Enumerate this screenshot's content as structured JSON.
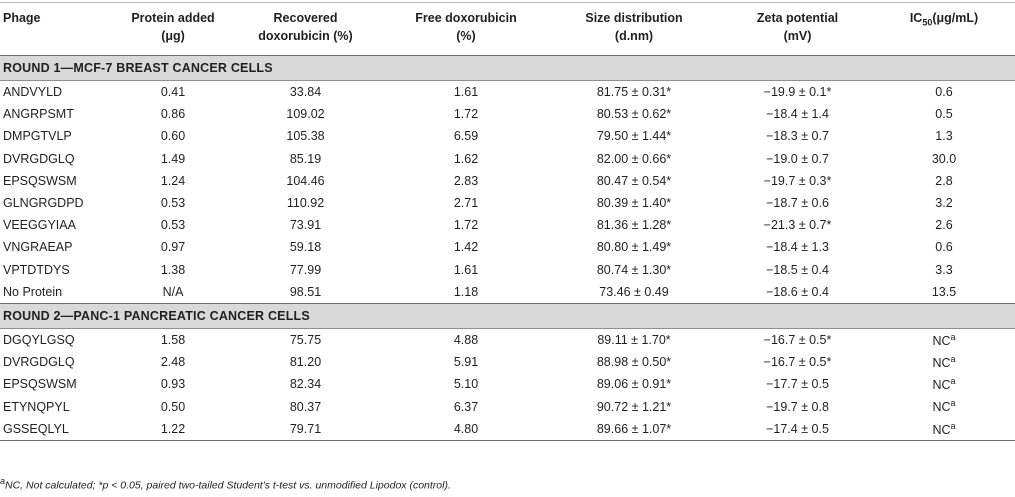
{
  "headers": [
    [
      "Phage"
    ],
    [
      "Protein added",
      "(μg)"
    ],
    [
      "Recovered",
      "doxorubicin (%)"
    ],
    [
      "Free doxorubicin",
      "(%)"
    ],
    [
      "Size distribution",
      "(d.nm)"
    ],
    [
      "Zeta potential",
      "(mV)"
    ],
    [
      "IC",
      "50",
      "(μg/mL)"
    ]
  ],
  "sections": [
    {
      "title": "ROUND 1—MCF-7 BREAST CANCER CELLS",
      "rows": [
        [
          "ANDVYLD",
          "0.41",
          "33.84",
          "1.61",
          "81.75 ± 0.31*",
          "−19.9 ± 0.1*",
          "0.6"
        ],
        [
          "ANGRPSMT",
          "0.86",
          "109.02",
          "1.72",
          "80.53 ± 0.62*",
          "−18.4 ± 1.4",
          "0.5"
        ],
        [
          "DMPGTVLP",
          "0.60",
          "105.38",
          "6.59",
          "79.50 ± 1.44*",
          "−18.3 ± 0.7",
          "1.3"
        ],
        [
          "DVRGDGLQ",
          "1.49",
          "85.19",
          "1.62",
          "82.00 ± 0.66*",
          "−19.0 ± 0.7",
          "30.0"
        ],
        [
          "EPSQSWSM",
          "1.24",
          "104.46",
          "2.83",
          "80.47 ± 0.54*",
          "−19.7 ± 0.3*",
          "2.8"
        ],
        [
          "GLNGRGDPD",
          "0.53",
          "110.92",
          "2.71",
          "80.39 ± 1.40*",
          "−18.7 ± 0.6",
          "3.2"
        ],
        [
          "VEEGGYIAA",
          "0.53",
          "73.91",
          "1.72",
          "81.36 ± 1.28*",
          "−21.3 ± 0.7*",
          "2.6"
        ],
        [
          "VNGRAEAP",
          "0.97",
          "59.18",
          "1.42",
          "80.80 ± 1.49*",
          "−18.4 ± 1.3",
          "0.6"
        ],
        [
          "VPTDTDYS",
          "1.38",
          "77.99",
          "1.61",
          "80.74 ± 1.30*",
          "−18.5 ± 0.4",
          "3.3"
        ],
        [
          "No Protein",
          "N/A",
          "98.51",
          "1.18",
          "73.46 ± 0.49",
          "−18.6 ± 0.4",
          "13.5"
        ]
      ]
    },
    {
      "title": "ROUND 2—PANC-1 PANCREATIC CANCER CELLS",
      "rows": [
        [
          "DGQYLGSQ",
          "1.58",
          "75.75",
          "4.88",
          "89.11 ± 1.70*",
          "−16.7 ± 0.5*",
          "NC",
          "a"
        ],
        [
          "DVRGDGLQ",
          "2.48",
          "81.20",
          "5.91",
          "88.98 ± 0.50*",
          "−16.7 ± 0.5*",
          "NC",
          "a"
        ],
        [
          "EPSQSWSM",
          "0.93",
          "82.34",
          "5.10",
          "89.06 ± 0.91*",
          "−17.7 ± 0.5",
          "NC",
          "a"
        ],
        [
          "ETYNQPYL",
          "0.50",
          "80.37",
          "6.37",
          "90.72 ± 1.21*",
          "−19.7 ± 0.8",
          "NC",
          "a"
        ],
        [
          "GSSEQLYL",
          "1.22",
          "79.71",
          "4.80",
          "89.66 ± 1.07*",
          "−17.4 ± 0.5",
          "NC",
          "a"
        ]
      ]
    }
  ],
  "footnote": {
    "sup": "a",
    "text": "NC, Not calculated; *p < 0.05, paired two-tailed Student's t-test vs. unmodified Lipodox (control)."
  }
}
